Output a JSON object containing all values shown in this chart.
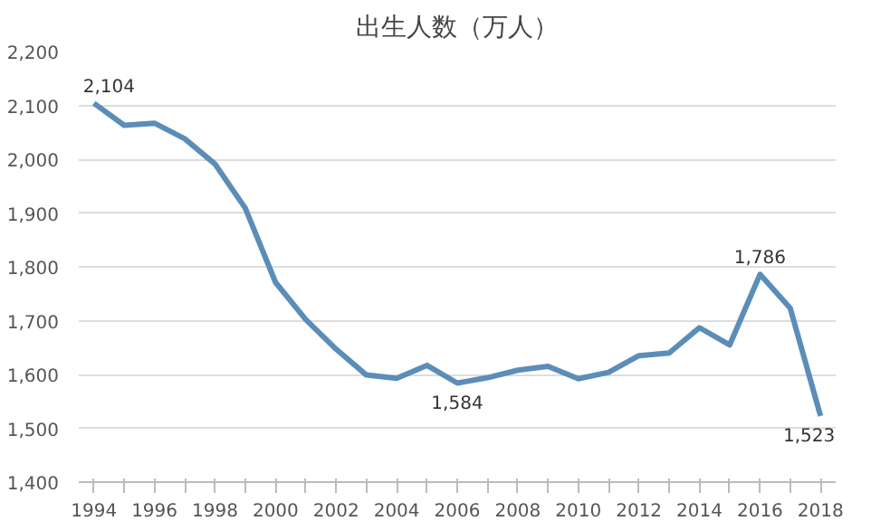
{
  "chart_data": {
    "type": "line",
    "title": "出生人数（万人）",
    "categories": [
      "1994",
      null,
      "1996",
      null,
      "1998",
      null,
      "2000",
      null,
      "2002",
      null,
      "2004",
      null,
      "2006",
      null,
      "2008",
      null,
      "2010",
      null,
      "2012",
      null,
      "2014",
      null,
      "2016",
      null,
      "2018"
    ],
    "series": [
      {
        "color": "#5b8db8",
        "values": [
          2104,
          2063,
          2067,
          2038,
          1991,
          1909,
          1771,
          1702,
          1647,
          1599,
          1593,
          1617,
          1584,
          1594,
          1608,
          1615,
          1592,
          1604,
          1635,
          1640,
          1687,
          1655,
          1786,
          1723,
          1523
        ],
        "value_labels": [
          "2,104",
          null,
          null,
          null,
          null,
          null,
          null,
          null,
          null,
          null,
          null,
          null,
          "1,584",
          null,
          null,
          null,
          null,
          null,
          null,
          null,
          null,
          null,
          "1,786",
          null,
          "1,523"
        ]
      }
    ],
    "ylim": [
      1400,
      2200
    ],
    "yticks": [
      {
        "value": 1400,
        "label": "1,400"
      },
      {
        "value": 1500,
        "label": "1,500"
      },
      {
        "value": 1600,
        "label": "1,600"
      },
      {
        "value": 1700,
        "label": "1,700"
      },
      {
        "value": 1800,
        "label": "1,800"
      },
      {
        "value": 1900,
        "label": "1,900"
      },
      {
        "value": 2000,
        "label": "2,000"
      },
      {
        "value": 2100,
        "label": "2,100"
      },
      {
        "value": 2200,
        "label": "2,200"
      }
    ],
    "grid": "y",
    "marker": "none",
    "line_style": "solid"
  }
}
